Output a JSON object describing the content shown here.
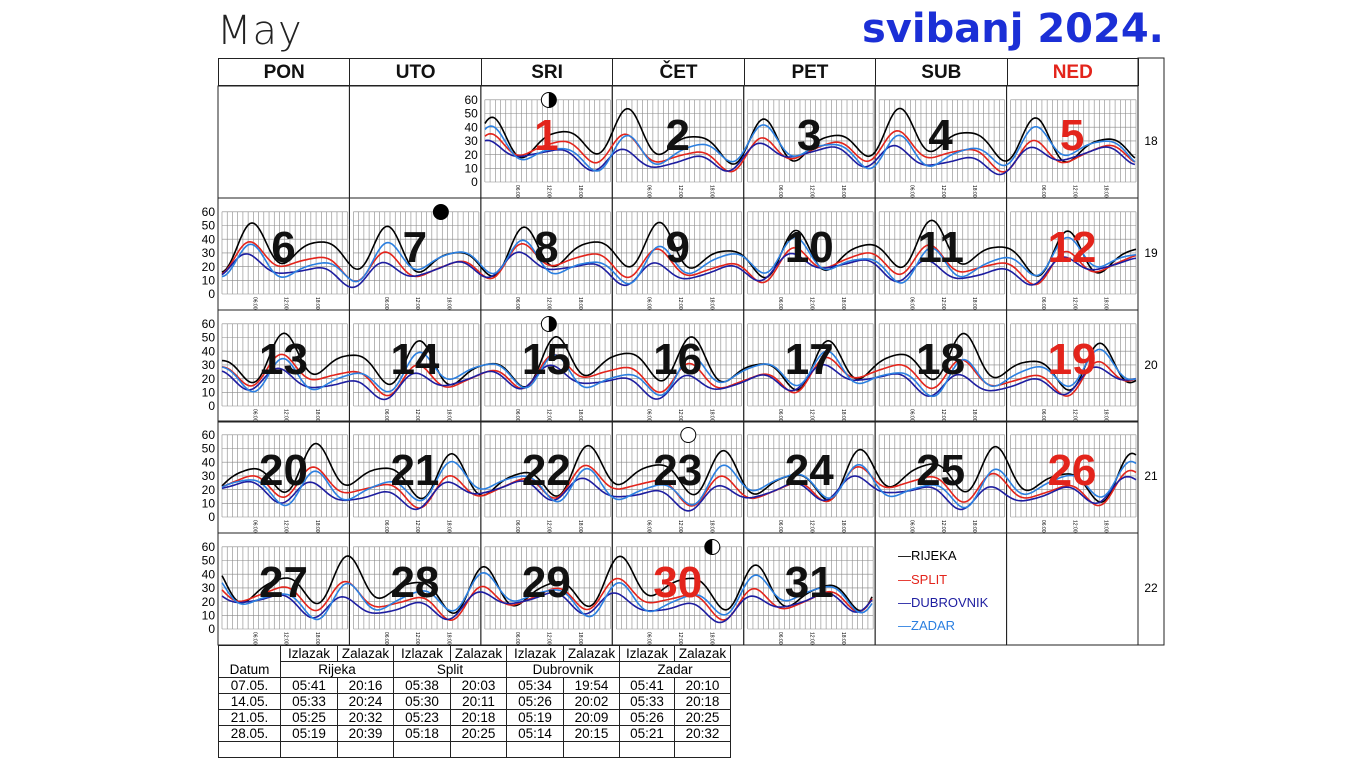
{
  "title_left": "May",
  "title_right": "svibanj 2024.",
  "weekdays": [
    "PON",
    "UTO",
    "SRI",
    "ČET",
    "PET",
    "SUB",
    "NED"
  ],
  "weekday_colors": [
    "#111111",
    "#111111",
    "#111111",
    "#111111",
    "#111111",
    "#111111",
    "#e3241b"
  ],
  "weeks": [
    {
      "week": "18",
      "days": [
        null,
        null,
        "1",
        "2",
        "3",
        "4",
        "5"
      ]
    },
    {
      "week": "19",
      "days": [
        "6",
        "7",
        "8",
        "9",
        "10",
        "11",
        "12"
      ]
    },
    {
      "week": "20",
      "days": [
        "13",
        "14",
        "15",
        "16",
        "17",
        "18",
        "19"
      ]
    },
    {
      "week": "21",
      "days": [
        "20",
        "21",
        "22",
        "23",
        "24",
        "25",
        "26"
      ]
    },
    {
      "week": "22",
      "days": [
        "27",
        "28",
        "29",
        "30",
        "31",
        null,
        null
      ]
    }
  ],
  "red_days": [
    "1",
    "5",
    "12",
    "19",
    "26",
    "30"
  ],
  "y_ticks": [
    "60",
    "50",
    "40",
    "30",
    "20",
    "10",
    "0"
  ],
  "time_ticks": [
    "06:00",
    "12:00",
    "18:00"
  ],
  "moon_phases": [
    {
      "day": "1",
      "phase": "first-quarter"
    },
    {
      "day": "8",
      "phase": "new-moon"
    },
    {
      "day": "15",
      "phase": "first-quarter"
    },
    {
      "day": "23",
      "phase": "full-moon"
    },
    {
      "day": "30",
      "phase": "last-quarter"
    }
  ],
  "legend": [
    {
      "label": "RIJEKA",
      "color": "#000000"
    },
    {
      "label": "SPLIT",
      "color": "#e3241b"
    },
    {
      "label": "DUBROVNIK",
      "color": "#1d1da0"
    },
    {
      "label": "ZADAR",
      "color": "#2b7fe0"
    }
  ],
  "sun_table": {
    "rise": "Izlazak",
    "set": "Zalazak",
    "date_header": "Datum",
    "cities": [
      "Rijeka",
      "Split",
      "Dubrovnik",
      "Zadar"
    ],
    "rows": [
      [
        "07.05.",
        "05:41",
        "20:16",
        "05:38",
        "20:03",
        "05:34",
        "19:54",
        "05:41",
        "20:10"
      ],
      [
        "14.05.",
        "05:33",
        "20:24",
        "05:30",
        "20:11",
        "05:26",
        "20:02",
        "05:33",
        "20:18"
      ],
      [
        "21.05.",
        "05:25",
        "20:32",
        "05:23",
        "20:18",
        "05:19",
        "20:09",
        "05:26",
        "20:25"
      ],
      [
        "28.05.",
        "05:19",
        "20:39",
        "05:18",
        "20:25",
        "05:14",
        "20:15",
        "05:21",
        "20:32"
      ]
    ]
  }
}
